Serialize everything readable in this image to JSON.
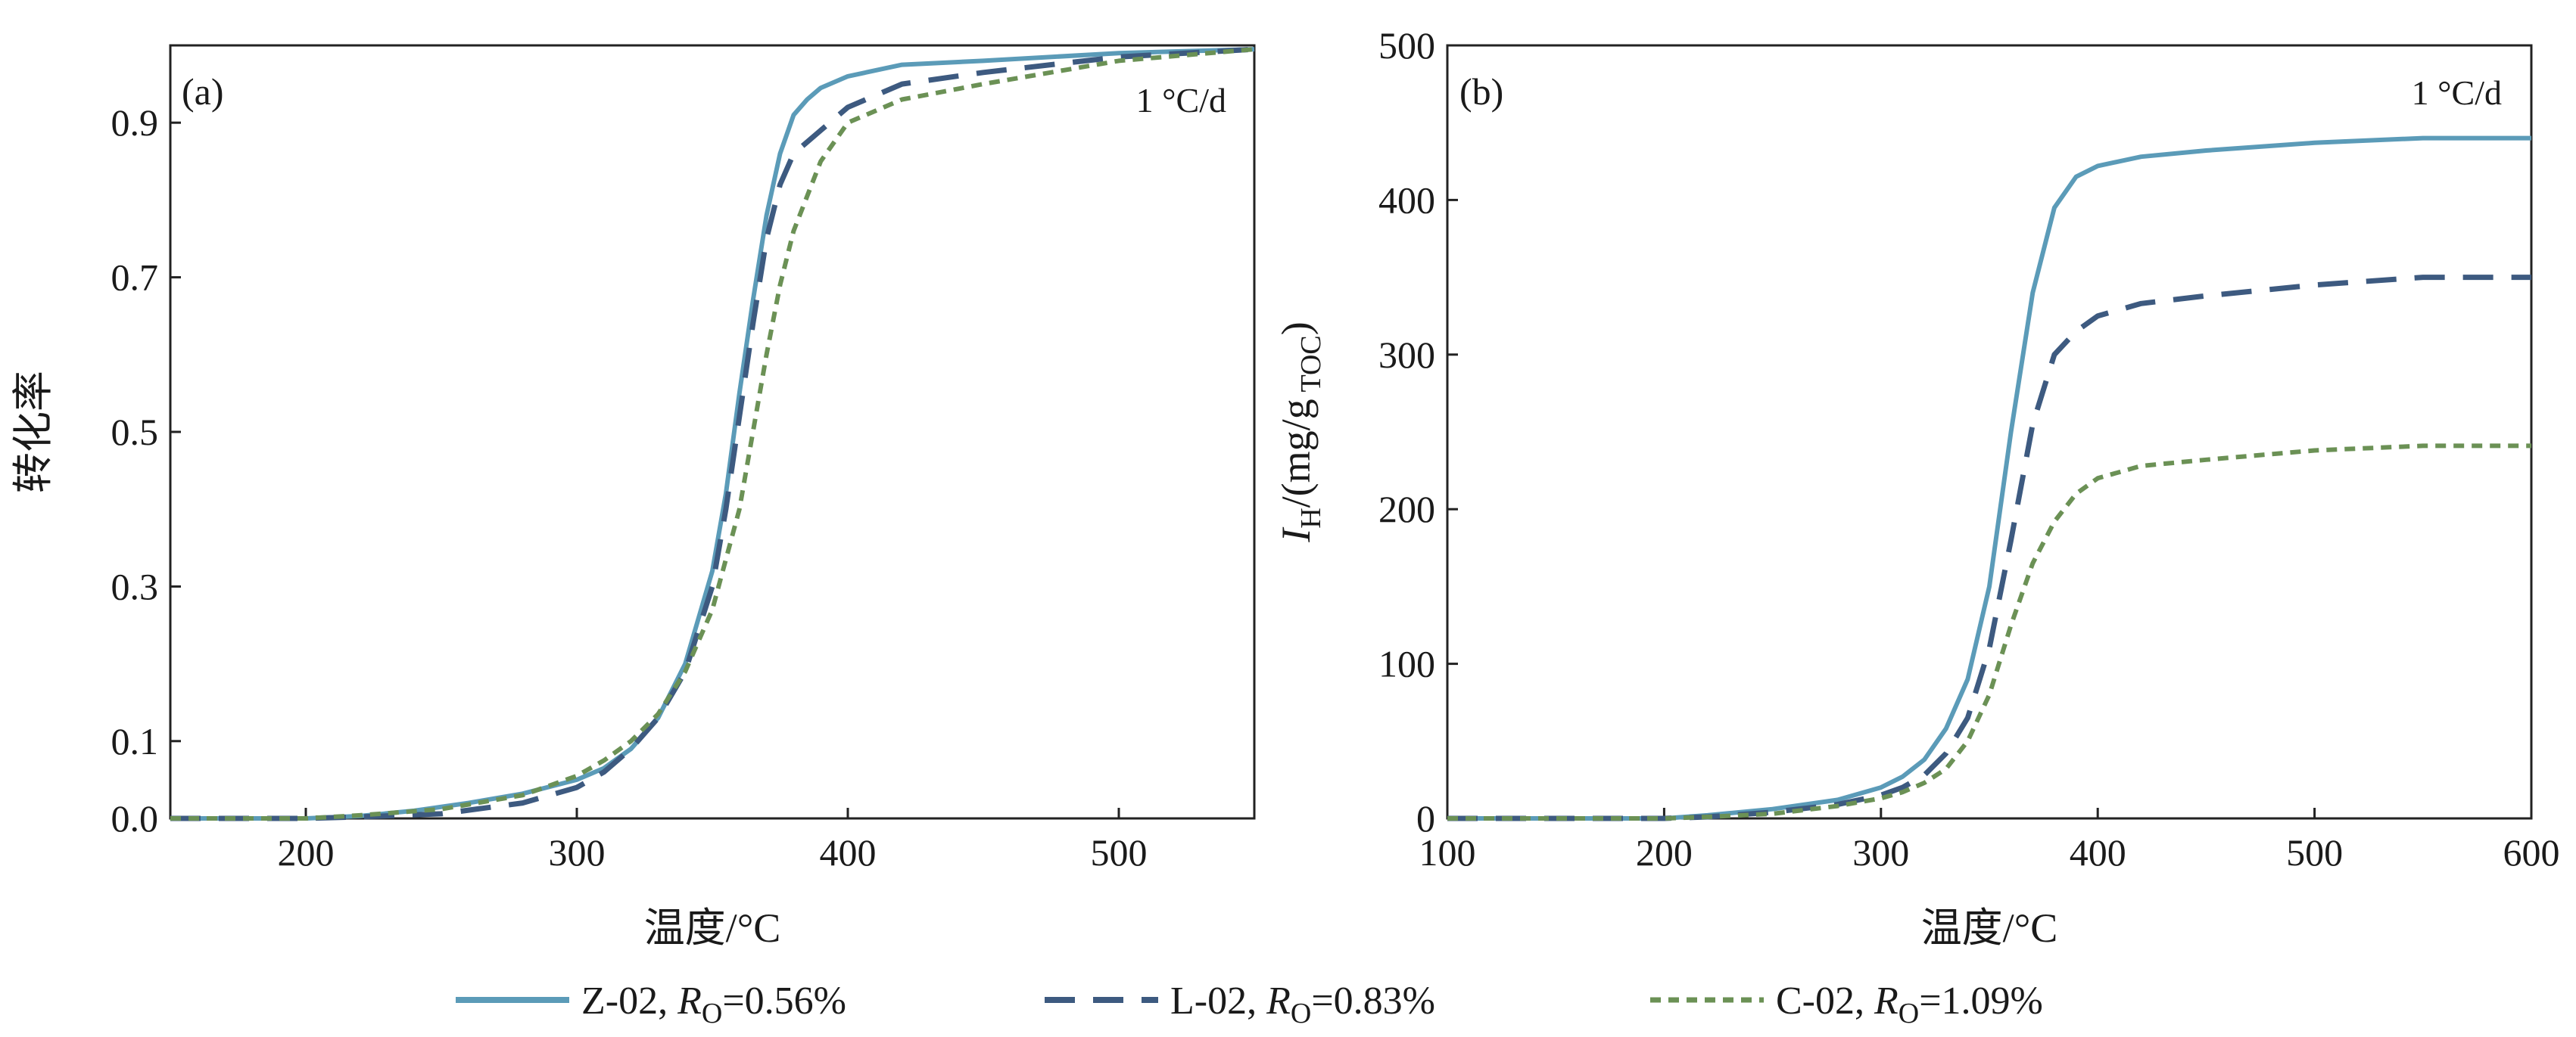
{
  "chart_data": [
    {
      "type": "line",
      "panel_label": "(a)",
      "annotation": "1 °C/d",
      "xlabel": "温度/°C",
      "ylabel": "转化率",
      "xlim": [
        150,
        550
      ],
      "ylim": [
        0,
        1.0
      ],
      "xticks": [
        200,
        300,
        400,
        500
      ],
      "yticks": [
        0.0,
        0.1,
        0.3,
        0.5,
        0.7,
        0.9
      ],
      "xtick_labels": [
        "200",
        "300",
        "400",
        "500"
      ],
      "ytick_labels": [
        "0.0",
        "0.1",
        "0.3",
        "0.5",
        "0.7",
        "0.9"
      ],
      "grid": false,
      "series": [
        {
          "name": "Z-02",
          "x": [
            150,
            200,
            220,
            240,
            260,
            280,
            300,
            310,
            320,
            330,
            340,
            350,
            355,
            360,
            365,
            370,
            375,
            380,
            385,
            390,
            400,
            420,
            450,
            500,
            550
          ],
          "y": [
            0.0,
            0.0,
            0.003,
            0.01,
            0.02,
            0.032,
            0.05,
            0.065,
            0.09,
            0.13,
            0.2,
            0.32,
            0.42,
            0.55,
            0.67,
            0.78,
            0.86,
            0.91,
            0.93,
            0.945,
            0.96,
            0.975,
            0.98,
            0.99,
            0.995
          ]
        },
        {
          "name": "L-02",
          "x": [
            150,
            200,
            220,
            250,
            280,
            300,
            310,
            320,
            330,
            340,
            350,
            355,
            360,
            365,
            370,
            375,
            380,
            390,
            400,
            420,
            450,
            500,
            550
          ],
          "y": [
            0.0,
            0.0,
            0.002,
            0.006,
            0.02,
            0.04,
            0.06,
            0.09,
            0.13,
            0.19,
            0.3,
            0.4,
            0.52,
            0.64,
            0.75,
            0.82,
            0.86,
            0.89,
            0.92,
            0.95,
            0.965,
            0.985,
            0.995
          ]
        },
        {
          "name": "C-02",
          "x": [
            150,
            200,
            220,
            250,
            280,
            300,
            310,
            320,
            330,
            340,
            350,
            360,
            365,
            370,
            375,
            380,
            390,
            400,
            420,
            450,
            500,
            550
          ],
          "y": [
            0.0,
            0.0,
            0.004,
            0.012,
            0.03,
            0.055,
            0.075,
            0.1,
            0.135,
            0.19,
            0.27,
            0.4,
            0.5,
            0.6,
            0.69,
            0.76,
            0.85,
            0.9,
            0.93,
            0.95,
            0.98,
            0.995
          ]
        }
      ]
    },
    {
      "type": "line",
      "panel_label": "(b)",
      "annotation": "1 °C/d",
      "xlabel": "温度/°C",
      "ylabel": {
        "main": "I",
        "sub": "H",
        "unit": "/(mg/g",
        "unit_sub": " TOC",
        "close": ")"
      },
      "xlim": [
        100,
        600
      ],
      "ylim": [
        0,
        500
      ],
      "xticks": [
        100,
        200,
        300,
        400,
        500,
        600
      ],
      "yticks": [
        0,
        100,
        200,
        300,
        400,
        500
      ],
      "xtick_labels": [
        "100",
        "200",
        "300",
        "400",
        "500",
        "600"
      ],
      "ytick_labels": [
        "0",
        "100",
        "200",
        "300",
        "400",
        "500"
      ],
      "grid": false,
      "series": [
        {
          "name": "Z-02",
          "x": [
            100,
            200,
            220,
            250,
            280,
            300,
            310,
            320,
            330,
            340,
            350,
            360,
            370,
            380,
            390,
            400,
            420,
            450,
            500,
            550,
            600
          ],
          "y": [
            0,
            0,
            2,
            6,
            12,
            20,
            27,
            38,
            58,
            90,
            150,
            250,
            340,
            395,
            415,
            422,
            428,
            432,
            437,
            440,
            440
          ]
        },
        {
          "name": "L-02",
          "x": [
            100,
            200,
            220,
            250,
            280,
            300,
            310,
            320,
            330,
            340,
            350,
            360,
            370,
            380,
            390,
            400,
            420,
            450,
            500,
            550,
            600
          ],
          "y": [
            0,
            0,
            1,
            4,
            9,
            15,
            20,
            28,
            42,
            65,
            110,
            180,
            255,
            300,
            315,
            325,
            333,
            338,
            345,
            350,
            350
          ]
        },
        {
          "name": "C-02",
          "x": [
            100,
            200,
            220,
            250,
            280,
            300,
            310,
            320,
            330,
            340,
            350,
            360,
            370,
            380,
            390,
            400,
            420,
            450,
            500,
            550,
            600
          ],
          "y": [
            0,
            0,
            1,
            3,
            8,
            13,
            17,
            23,
            32,
            50,
            80,
            125,
            165,
            192,
            210,
            220,
            228,
            232,
            238,
            241,
            241
          ]
        }
      ]
    }
  ],
  "legend": [
    {
      "sample": "Z-02, ",
      "r": "R",
      "sub": "O",
      "value": "=0.56%",
      "color": "#5b9bb8",
      "dash": "solid"
    },
    {
      "sample": "L-02, ",
      "r": "R",
      "sub": "O",
      "value": "=0.83%",
      "color": "#3d5a80",
      "dash": "dash"
    },
    {
      "sample": "C-02, ",
      "r": "R",
      "sub": "O",
      "value": "=1.09%",
      "color": "#6b9155",
      "dash": "dot"
    }
  ],
  "colors": {
    "Z-02": "#5b9bb8",
    "L-02": "#3d5a80",
    "C-02": "#6b9155"
  }
}
